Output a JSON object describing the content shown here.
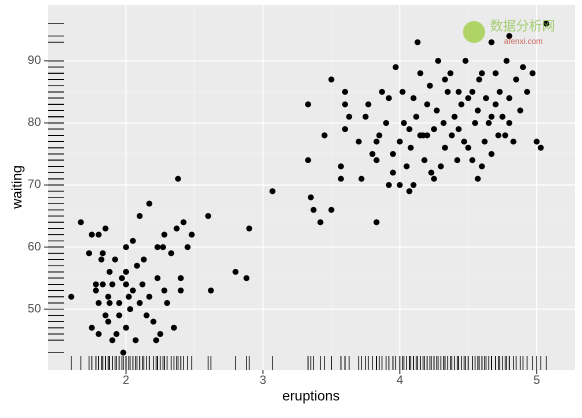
{
  "chart_data": {
    "type": "scatter",
    "x_label": "eruptions",
    "y_label": "waiting",
    "color": "#000000",
    "rug": true,
    "grid": true,
    "watermark": {
      "title": "数据分析网",
      "url": "afenxi.com"
    },
    "xlim": [
      1.43,
      5.28
    ],
    "ylim": [
      40.2,
      99.0
    ],
    "xticks": [
      2,
      3,
      4,
      5
    ],
    "yticks": [
      50,
      60,
      70,
      80,
      90
    ],
    "x": [
      1.6,
      1.67,
      1.73,
      1.75,
      1.75,
      1.78,
      1.8,
      1.8,
      1.82,
      1.83,
      1.83,
      1.85,
      1.85,
      1.87,
      1.87,
      1.88,
      1.9,
      1.9,
      1.92,
      1.95,
      1.95,
      1.97,
      1.98,
      2.0,
      2.0,
      2.02,
      2.03,
      2.05,
      2.07,
      2.08,
      2.1,
      2.1,
      2.13,
      2.17,
      2.17,
      2.2,
      2.23,
      2.23,
      2.25,
      2.27,
      2.28,
      2.3,
      2.33,
      2.35,
      2.37,
      2.38,
      2.4,
      2.42,
      2.45,
      2.48,
      1.8,
      2.0,
      2.15,
      2.28,
      1.93,
      2.12,
      1.78,
      2.05,
      2.22,
      2.4,
      1.88,
      2.0,
      2.6,
      2.62,
      2.8,
      2.88,
      2.9,
      3.07,
      3.33,
      3.33,
      3.35,
      3.37,
      3.42,
      3.45,
      3.5,
      3.5,
      3.57,
      3.57,
      3.6,
      3.6,
      3.6,
      3.63,
      3.7,
      3.72,
      3.75,
      3.77,
      3.8,
      3.83,
      3.83,
      3.83,
      3.85,
      3.87,
      3.9,
      3.92,
      3.92,
      3.95,
      3.97,
      4.0,
      4.0,
      4.02,
      4.03,
      4.05,
      4.07,
      4.08,
      4.1,
      4.1,
      4.12,
      4.13,
      4.15,
      4.17,
      4.18,
      4.2,
      4.2,
      4.22,
      4.23,
      4.25,
      4.27,
      4.28,
      4.3,
      4.32,
      4.33,
      4.35,
      4.37,
      4.38,
      4.4,
      4.42,
      4.43,
      4.45,
      4.47,
      4.48,
      4.5,
      4.5,
      4.53,
      4.53,
      4.55,
      4.57,
      4.58,
      4.6,
      4.6,
      4.62,
      4.63,
      4.65,
      4.67,
      4.67,
      4.7,
      4.7,
      4.72,
      4.73,
      4.75,
      4.77,
      4.78,
      4.8,
      4.8,
      4.83,
      4.85,
      4.88,
      4.9,
      4.93,
      4.97,
      5.0,
      5.03,
      5.07,
      4.8,
      4.43,
      4.25,
      4.15,
      3.95,
      4.57,
      4.33,
      4.67,
      4.07
    ],
    "values": [
      52,
      64,
      59,
      47,
      62,
      54,
      51,
      46,
      58,
      54,
      59,
      49,
      63,
      48,
      52,
      56,
      45,
      54,
      58,
      51,
      49,
      55,
      43,
      56,
      60,
      52,
      50,
      53,
      45,
      57,
      51,
      65,
      58,
      52,
      67,
      48,
      60,
      55,
      46,
      60,
      53,
      51,
      59,
      47,
      63,
      71,
      53,
      64,
      60,
      62,
      62,
      47,
      49,
      62,
      46,
      54,
      53,
      61,
      45,
      55,
      51,
      54,
      65,
      53,
      56,
      55,
      63,
      69,
      83,
      74,
      68,
      66,
      64,
      78,
      66,
      87,
      71,
      73,
      79,
      83,
      85,
      81,
      77,
      71,
      81,
      83,
      75,
      64,
      77,
      74,
      78,
      85,
      80,
      70,
      84,
      75,
      89,
      70,
      77,
      85,
      80,
      73,
      69,
      76,
      70,
      84,
      81,
      93,
      88,
      78,
      74,
      78,
      83,
      86,
      72,
      79,
      82,
      90,
      73,
      80,
      76,
      85,
      88,
      78,
      81,
      74,
      79,
      83,
      77,
      90,
      76,
      84,
      85,
      74,
      80,
      82,
      87,
      73,
      88,
      77,
      84,
      80,
      93,
      75,
      83,
      88,
      78,
      85,
      81,
      78,
      90,
      84,
      80,
      77,
      87,
      82,
      89,
      85,
      88,
      77,
      76,
      96,
      94,
      85,
      71,
      78,
      72,
      71,
      87,
      81,
      79
    ]
  }
}
